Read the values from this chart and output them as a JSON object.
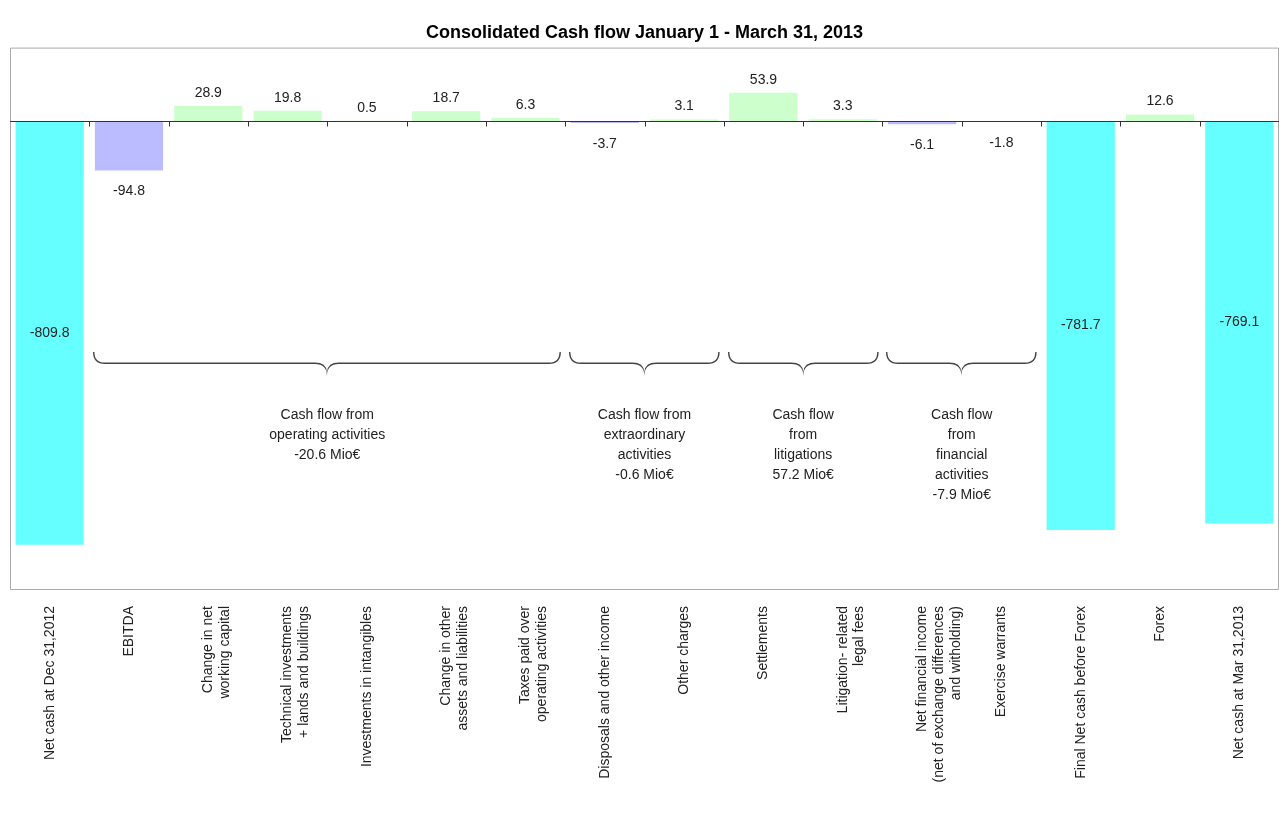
{
  "chart_data": {
    "type": "bar",
    "title": "Consolidated Cash flow January 1 - March 31, 2013",
    "categories": [
      "Net cash at Dec 31,2012",
      "EBITDA",
      "Change in net\nworking capital",
      "Technical investments\n+ lands and buildings",
      "Investments in intangibles",
      "Change in other\nassets and liabilities",
      "Taxes paid over\noperating activities",
      "Disposals and other income",
      "Other charges",
      "Settlements",
      "Litigation- related\nlegal fees",
      "Net financial income\n(net of exchange differences\nand witholding)",
      "Exercise warrants",
      "Final Net cash before Forex",
      "Forex",
      "Net cash at Mar 31,2013"
    ],
    "values": [
      -809.8,
      -94.8,
      28.9,
      19.8,
      0.5,
      18.7,
      6.3,
      -3.7,
      3.1,
      53.9,
      3.3,
      -6.1,
      -1.8,
      -781.7,
      12.6,
      -769.1
    ],
    "colors": [
      "#66ffff",
      "#bbbbff",
      "#ccffcc",
      "#ccffcc",
      "#ccffcc",
      "#ccffcc",
      "#ccffcc",
      "#bbbbff",
      "#ccffcc",
      "#ccffcc",
      "#ccffcc",
      "#bbbbff",
      "#bbbbff",
      "#66ffff",
      "#ccffcc",
      "#66ffff"
    ],
    "data_labels": true,
    "annotations": [
      "Cash flow from\noperating activities\n-20.6 Mio€",
      "Cash flow from\nextraordinary\nactivities\n-0.6 Mio€",
      "Cash flow\nfrom\nlitigations\n57.2 Mio€",
      "Cash flow\nfrom\nfinancial\nactivities\n-7.9 Mio€"
    ]
  }
}
